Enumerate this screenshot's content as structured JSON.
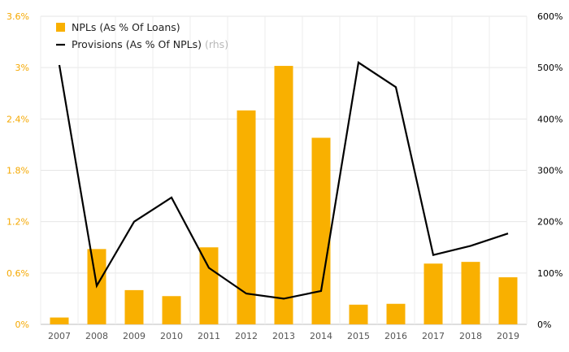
{
  "chart_data": {
    "type": "bar+line",
    "categories": [
      "2007",
      "2008",
      "2009",
      "2010",
      "2011",
      "2012",
      "2013",
      "2014",
      "2015",
      "2016",
      "2017",
      "2018",
      "2019"
    ],
    "series": [
      {
        "name": "NPLs (As % Of Loans)",
        "type": "bar",
        "axis": "left",
        "color": "#F9B000",
        "values": [
          0.08,
          0.88,
          0.4,
          0.33,
          0.9,
          2.5,
          3.02,
          2.18,
          0.23,
          0.24,
          0.71,
          0.73,
          0.55
        ]
      },
      {
        "name": "Provisions (As % Of NPLs)",
        "name_suffix": "(rhs)",
        "type": "line",
        "axis": "right",
        "color": "#000000",
        "values": [
          505,
          75,
          200,
          247,
          110,
          60,
          50,
          65,
          510,
          462,
          135,
          153,
          177
        ]
      }
    ],
    "y_left": {
      "min": 0,
      "max": 3.6,
      "ticks": [
        "0%",
        "0.6%",
        "1.2%",
        "1.8%",
        "2.4%",
        "3%",
        "3.6%"
      ]
    },
    "y_right": {
      "min": 0,
      "max": 600,
      "ticks": [
        "0%",
        "100%",
        "200%",
        "300%",
        "400%",
        "500%",
        "600%"
      ]
    },
    "legend_position": "top-left"
  }
}
